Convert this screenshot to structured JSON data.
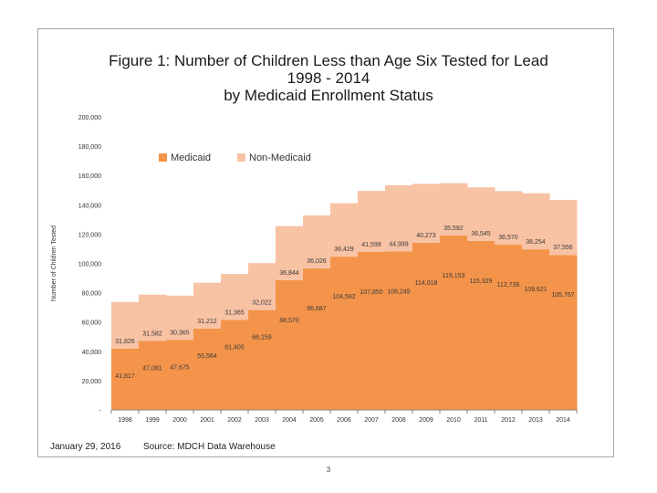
{
  "chart_data": {
    "type": "bar",
    "stacked": true,
    "title": [
      "Figure 1:  Number of Children Less than Age Six Tested for Lead",
      "1998 - 2014",
      "by Medicaid Enrollment Status"
    ],
    "xlabel": "",
    "ylabel": "Number of Children Tested",
    "ylim": [
      0,
      200000
    ],
    "yticks": [
      0,
      20000,
      40000,
      60000,
      80000,
      100000,
      120000,
      140000,
      160000,
      180000,
      200000
    ],
    "ytick_labels": [
      "-",
      "20,000",
      "40,000",
      "60,000",
      "80,000",
      "100,000",
      "120,000",
      "140,000",
      "160,000",
      "180,000",
      "200,000"
    ],
    "categories": [
      "1998",
      "1999",
      "2000",
      "2001",
      "2002",
      "2003",
      "2004",
      "2005",
      "2006",
      "2007",
      "2008",
      "2009",
      "2010",
      "2011",
      "2012",
      "2013",
      "2014"
    ],
    "legend_position": "top-left",
    "series": [
      {
        "name": "Medicaid",
        "color": "#f4944a",
        "values": [
          41817,
          47081,
          47675,
          55564,
          61405,
          68159,
          88570,
          96687,
          104592,
          107850,
          108249,
          114018,
          119153,
          115329,
          112736,
          109621,
          105767
        ],
        "labels": [
          "41,817",
          "47,081",
          "47,675",
          "55,564",
          "61,405",
          "68,159",
          "88,570",
          "96,687",
          "104,592",
          "107,850",
          "108,249",
          "114,018",
          "119,153",
          "115,329",
          "112,736",
          "109,621",
          "105,767"
        ]
      },
      {
        "name": "Non-Medicaid",
        "color": "#f8c2a4",
        "values": [
          31826,
          31582,
          30365,
          31212,
          31365,
          32022,
          36844,
          36026,
          36429,
          41599,
          44999,
          40273,
          35592,
          36545,
          36570,
          38254,
          37556
        ],
        "labels": [
          "31,826",
          "31,582",
          "30,365",
          "31,212",
          "31,365",
          "32,022",
          "36,844",
          "36,026",
          "36,429",
          "41,599",
          "44,999",
          "40,273",
          "35,592",
          "36,545",
          "36,570",
          "38,254",
          "37,556"
        ]
      }
    ]
  },
  "footer": {
    "date": "January 29, 2016",
    "source": "Source:  MDCH Data Warehouse"
  },
  "page_number": "3"
}
